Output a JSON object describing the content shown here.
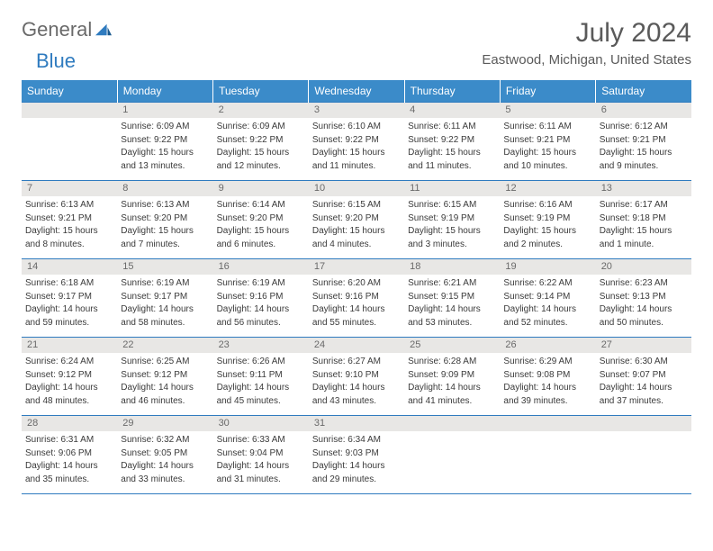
{
  "logo": {
    "word1": "General",
    "word2": "Blue"
  },
  "title": {
    "month": "July 2024",
    "location": "Eastwood, Michigan, United States"
  },
  "colors": {
    "header_bg": "#3b8bc9",
    "accent": "#2f7bbf",
    "daynum_bg": "#e8e7e5",
    "text": "#3a3a3a"
  },
  "weekdays": [
    "Sunday",
    "Monday",
    "Tuesday",
    "Wednesday",
    "Thursday",
    "Friday",
    "Saturday"
  ],
  "weeks": [
    [
      null,
      {
        "n": "1",
        "sr": "Sunrise: 6:09 AM",
        "ss": "Sunset: 9:22 PM",
        "dl1": "Daylight: 15 hours",
        "dl2": "and 13 minutes."
      },
      {
        "n": "2",
        "sr": "Sunrise: 6:09 AM",
        "ss": "Sunset: 9:22 PM",
        "dl1": "Daylight: 15 hours",
        "dl2": "and 12 minutes."
      },
      {
        "n": "3",
        "sr": "Sunrise: 6:10 AM",
        "ss": "Sunset: 9:22 PM",
        "dl1": "Daylight: 15 hours",
        "dl2": "and 11 minutes."
      },
      {
        "n": "4",
        "sr": "Sunrise: 6:11 AM",
        "ss": "Sunset: 9:22 PM",
        "dl1": "Daylight: 15 hours",
        "dl2": "and 11 minutes."
      },
      {
        "n": "5",
        "sr": "Sunrise: 6:11 AM",
        "ss": "Sunset: 9:21 PM",
        "dl1": "Daylight: 15 hours",
        "dl2": "and 10 minutes."
      },
      {
        "n": "6",
        "sr": "Sunrise: 6:12 AM",
        "ss": "Sunset: 9:21 PM",
        "dl1": "Daylight: 15 hours",
        "dl2": "and 9 minutes."
      }
    ],
    [
      {
        "n": "7",
        "sr": "Sunrise: 6:13 AM",
        "ss": "Sunset: 9:21 PM",
        "dl1": "Daylight: 15 hours",
        "dl2": "and 8 minutes."
      },
      {
        "n": "8",
        "sr": "Sunrise: 6:13 AM",
        "ss": "Sunset: 9:20 PM",
        "dl1": "Daylight: 15 hours",
        "dl2": "and 7 minutes."
      },
      {
        "n": "9",
        "sr": "Sunrise: 6:14 AM",
        "ss": "Sunset: 9:20 PM",
        "dl1": "Daylight: 15 hours",
        "dl2": "and 6 minutes."
      },
      {
        "n": "10",
        "sr": "Sunrise: 6:15 AM",
        "ss": "Sunset: 9:20 PM",
        "dl1": "Daylight: 15 hours",
        "dl2": "and 4 minutes."
      },
      {
        "n": "11",
        "sr": "Sunrise: 6:15 AM",
        "ss": "Sunset: 9:19 PM",
        "dl1": "Daylight: 15 hours",
        "dl2": "and 3 minutes."
      },
      {
        "n": "12",
        "sr": "Sunrise: 6:16 AM",
        "ss": "Sunset: 9:19 PM",
        "dl1": "Daylight: 15 hours",
        "dl2": "and 2 minutes."
      },
      {
        "n": "13",
        "sr": "Sunrise: 6:17 AM",
        "ss": "Sunset: 9:18 PM",
        "dl1": "Daylight: 15 hours",
        "dl2": "and 1 minute."
      }
    ],
    [
      {
        "n": "14",
        "sr": "Sunrise: 6:18 AM",
        "ss": "Sunset: 9:17 PM",
        "dl1": "Daylight: 14 hours",
        "dl2": "and 59 minutes."
      },
      {
        "n": "15",
        "sr": "Sunrise: 6:19 AM",
        "ss": "Sunset: 9:17 PM",
        "dl1": "Daylight: 14 hours",
        "dl2": "and 58 minutes."
      },
      {
        "n": "16",
        "sr": "Sunrise: 6:19 AM",
        "ss": "Sunset: 9:16 PM",
        "dl1": "Daylight: 14 hours",
        "dl2": "and 56 minutes."
      },
      {
        "n": "17",
        "sr": "Sunrise: 6:20 AM",
        "ss": "Sunset: 9:16 PM",
        "dl1": "Daylight: 14 hours",
        "dl2": "and 55 minutes."
      },
      {
        "n": "18",
        "sr": "Sunrise: 6:21 AM",
        "ss": "Sunset: 9:15 PM",
        "dl1": "Daylight: 14 hours",
        "dl2": "and 53 minutes."
      },
      {
        "n": "19",
        "sr": "Sunrise: 6:22 AM",
        "ss": "Sunset: 9:14 PM",
        "dl1": "Daylight: 14 hours",
        "dl2": "and 52 minutes."
      },
      {
        "n": "20",
        "sr": "Sunrise: 6:23 AM",
        "ss": "Sunset: 9:13 PM",
        "dl1": "Daylight: 14 hours",
        "dl2": "and 50 minutes."
      }
    ],
    [
      {
        "n": "21",
        "sr": "Sunrise: 6:24 AM",
        "ss": "Sunset: 9:12 PM",
        "dl1": "Daylight: 14 hours",
        "dl2": "and 48 minutes."
      },
      {
        "n": "22",
        "sr": "Sunrise: 6:25 AM",
        "ss": "Sunset: 9:12 PM",
        "dl1": "Daylight: 14 hours",
        "dl2": "and 46 minutes."
      },
      {
        "n": "23",
        "sr": "Sunrise: 6:26 AM",
        "ss": "Sunset: 9:11 PM",
        "dl1": "Daylight: 14 hours",
        "dl2": "and 45 minutes."
      },
      {
        "n": "24",
        "sr": "Sunrise: 6:27 AM",
        "ss": "Sunset: 9:10 PM",
        "dl1": "Daylight: 14 hours",
        "dl2": "and 43 minutes."
      },
      {
        "n": "25",
        "sr": "Sunrise: 6:28 AM",
        "ss": "Sunset: 9:09 PM",
        "dl1": "Daylight: 14 hours",
        "dl2": "and 41 minutes."
      },
      {
        "n": "26",
        "sr": "Sunrise: 6:29 AM",
        "ss": "Sunset: 9:08 PM",
        "dl1": "Daylight: 14 hours",
        "dl2": "and 39 minutes."
      },
      {
        "n": "27",
        "sr": "Sunrise: 6:30 AM",
        "ss": "Sunset: 9:07 PM",
        "dl1": "Daylight: 14 hours",
        "dl2": "and 37 minutes."
      }
    ],
    [
      {
        "n": "28",
        "sr": "Sunrise: 6:31 AM",
        "ss": "Sunset: 9:06 PM",
        "dl1": "Daylight: 14 hours",
        "dl2": "and 35 minutes."
      },
      {
        "n": "29",
        "sr": "Sunrise: 6:32 AM",
        "ss": "Sunset: 9:05 PM",
        "dl1": "Daylight: 14 hours",
        "dl2": "and 33 minutes."
      },
      {
        "n": "30",
        "sr": "Sunrise: 6:33 AM",
        "ss": "Sunset: 9:04 PM",
        "dl1": "Daylight: 14 hours",
        "dl2": "and 31 minutes."
      },
      {
        "n": "31",
        "sr": "Sunrise: 6:34 AM",
        "ss": "Sunset: 9:03 PM",
        "dl1": "Daylight: 14 hours",
        "dl2": "and 29 minutes."
      },
      null,
      null,
      null
    ]
  ]
}
